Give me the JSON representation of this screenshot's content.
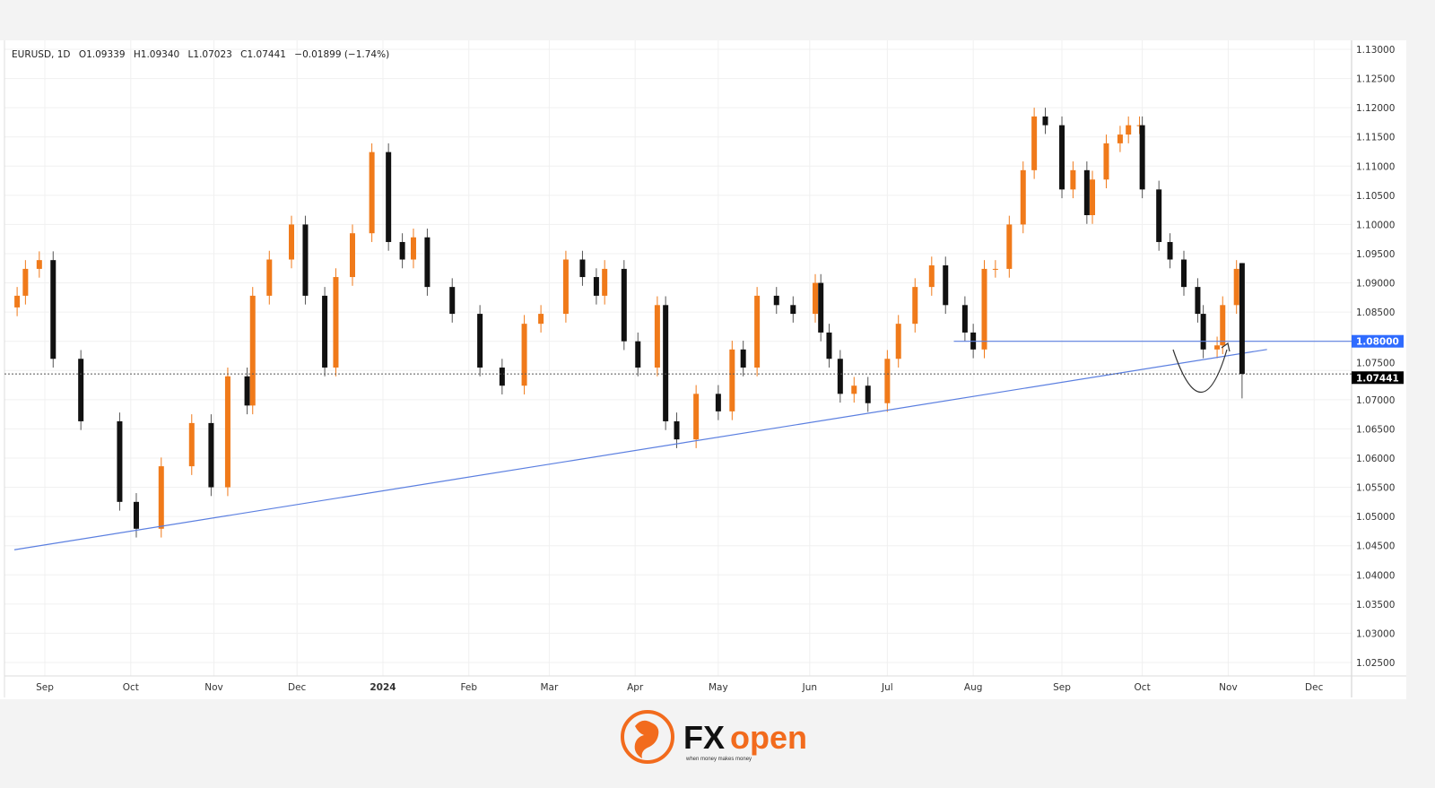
{
  "legend": {
    "symbol": "EURUSD, 1D",
    "open": "O1.09339",
    "high": "H1.09340",
    "low": "L1.07023",
    "close": "C1.07441",
    "change": "−0.01899 (−1.74%)"
  },
  "chart_data": {
    "type": "candlestick",
    "title": "",
    "colors": {
      "up": "#f07a1a",
      "down": "#111111",
      "trendline": "#5b7fe0",
      "level_label_bg": "#2f6bff",
      "last_label_bg": "#000000"
    },
    "ylim": [
      1.022,
      1.131
    ],
    "y_ticks": [
      "1.13000",
      "1.12500",
      "1.12000",
      "1.11500",
      "1.11000",
      "1.10500",
      "1.10000",
      "1.09500",
      "1.09000",
      "1.08500",
      "1.08000",
      "1.07500",
      "1.07000",
      "1.06500",
      "1.06000",
      "1.05500",
      "1.05000",
      "1.04500",
      "1.04000",
      "1.03500",
      "1.03000",
      "1.02500"
    ],
    "x_ticks": [
      {
        "label": "Sep",
        "date": "2023-09-01"
      },
      {
        "label": "Oct",
        "date": "2023-10-02"
      },
      {
        "label": "Nov",
        "date": "2023-11-01"
      },
      {
        "label": "Dec",
        "date": "2023-12-01"
      },
      {
        "label": "2024",
        "date": "2024-01-01"
      },
      {
        "label": "Feb",
        "date": "2024-02-01"
      },
      {
        "label": "Mar",
        "date": "2024-03-01"
      },
      {
        "label": "Apr",
        "date": "2024-04-01"
      },
      {
        "label": "May",
        "date": "2024-05-01"
      },
      {
        "label": "Jun",
        "date": "2024-06-03"
      },
      {
        "label": "Jul",
        "date": "2024-07-01"
      },
      {
        "label": "Aug",
        "date": "2024-08-01"
      },
      {
        "label": "Sep",
        "date": "2024-09-02"
      },
      {
        "label": "Oct",
        "date": "2024-10-01"
      },
      {
        "label": "Nov",
        "date": "2024-11-01"
      },
      {
        "label": "Dec",
        "date": "2024-12-02"
      }
    ],
    "dates": [
      "2023-08-22",
      "2023-08-25",
      "2023-08-30",
      "2023-09-04",
      "2023-09-14",
      "2023-09-28",
      "2023-10-04",
      "2023-10-13",
      "2023-10-24",
      "2023-10-31",
      "2023-11-06",
      "2023-11-13",
      "2023-11-15",
      "2023-11-21",
      "2023-11-29",
      "2023-12-04",
      "2023-12-11",
      "2023-12-15",
      "2023-12-21",
      "2023-12-28",
      "2024-01-03",
      "2024-01-08",
      "2024-01-12",
      "2024-01-17",
      "2024-01-26",
      "2024-02-05",
      "2024-02-13",
      "2024-02-21",
      "2024-02-27",
      "2024-03-07",
      "2024-03-13",
      "2024-03-18",
      "2024-03-21",
      "2024-03-28",
      "2024-04-02",
      "2024-04-09",
      "2024-04-12",
      "2024-04-16",
      "2024-04-23",
      "2024-05-01",
      "2024-05-06",
      "2024-05-10",
      "2024-05-15",
      "2024-05-22",
      "2024-05-28",
      "2024-06-05",
      "2024-06-07",
      "2024-06-10",
      "2024-06-14",
      "2024-06-19",
      "2024-06-24",
      "2024-07-01",
      "2024-07-05",
      "2024-07-11",
      "2024-07-17",
      "2024-07-22",
      "2024-07-29",
      "2024-08-01",
      "2024-08-05",
      "2024-08-09",
      "2024-08-14",
      "2024-08-19",
      "2024-08-23",
      "2024-08-27",
      "2024-09-02",
      "2024-09-06",
      "2024-09-11",
      "2024-09-13",
      "2024-09-18",
      "2024-09-23",
      "2024-09-26",
      "2024-09-30",
      "2024-10-01",
      "2024-10-07",
      "2024-10-11",
      "2024-10-16",
      "2024-10-21",
      "2024-10-23",
      "2024-10-28",
      "2024-10-30",
      "2024-11-04"
    ],
    "close": [
      1.0878,
      1.0924,
      1.0939,
      1.077,
      1.0663,
      1.0525,
      1.0479,
      1.0586,
      1.066,
      1.055,
      1.074,
      1.069,
      1.0878,
      1.094,
      1.1,
      1.0878,
      1.0755,
      1.091,
      1.0985,
      1.1124,
      1.097,
      1.094,
      1.0978,
      1.0893,
      1.0847,
      1.0755,
      1.0724,
      1.083,
      1.0847,
      1.094,
      1.091,
      1.0878,
      1.0924,
      1.08,
      1.0755,
      1.0862,
      1.0663,
      1.0632,
      1.071,
      1.068,
      1.0786,
      1.0755,
      1.0878,
      1.0862,
      1.0847,
      1.09,
      1.0815,
      1.077,
      1.071,
      1.0724,
      1.0694,
      1.077,
      1.083,
      1.0893,
      1.093,
      1.0862,
      1.0815,
      1.0786,
      1.0924,
      1.0924,
      1.1,
      1.1093,
      1.1185,
      1.117,
      1.106,
      1.1093,
      1.1016,
      1.1077,
      1.1139,
      1.1154,
      1.117,
      1.117,
      1.106,
      1.097,
      1.094,
      1.0893,
      1.0847,
      1.0786,
      1.0793,
      1.0862,
      1.0924
    ],
    "last_candle": {
      "date": "2024-11-06",
      "open": 1.09339,
      "high": 1.0934,
      "low": 1.07023,
      "close": 1.07441
    },
    "trendline": {
      "from": {
        "date": "2023-08-21",
        "price": 1.0443
      },
      "to": {
        "date": "2024-11-15",
        "price": 1.0786
      }
    },
    "horizontal_level": {
      "from_date": "2024-07-25",
      "price": 1.08,
      "label": "1.08000"
    },
    "last_price_label": "1.07441",
    "grid": true
  }
}
